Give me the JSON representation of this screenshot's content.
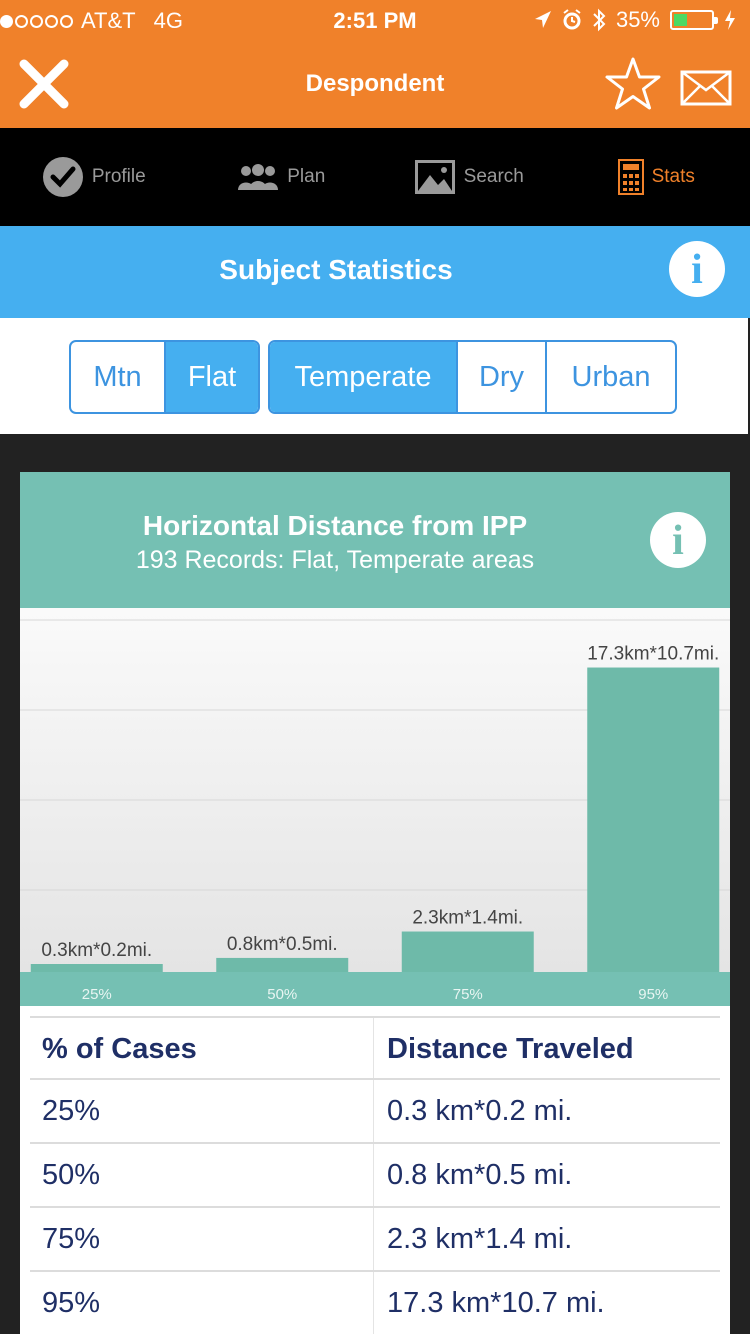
{
  "status_bar": {
    "carrier": "AT&T",
    "network": "4G",
    "time": "2:51 PM",
    "battery": "35%",
    "battery_level": 0.35
  },
  "nav": {
    "title": "Despondent"
  },
  "tabs": [
    {
      "label": "Profile",
      "icon": "check-circle-icon",
      "active": false
    },
    {
      "label": "Plan",
      "icon": "people-icon",
      "active": false
    },
    {
      "label": "Search",
      "icon": "image-icon",
      "active": false
    },
    {
      "label": "Stats",
      "icon": "calculator-icon",
      "active": true
    }
  ],
  "header": {
    "title": "Subject Statistics"
  },
  "terrain_filter": [
    {
      "label": "Mtn",
      "selected": false
    },
    {
      "label": "Flat",
      "selected": true
    }
  ],
  "climate_filter": [
    {
      "label": "Temperate",
      "selected": true
    },
    {
      "label": "Dry",
      "selected": false
    },
    {
      "label": "Urban",
      "selected": false
    }
  ],
  "chart_card": {
    "title": "Horizontal Distance from IPP",
    "subtitle": "193 Records: Flat, Temperate areas"
  },
  "chart_data": {
    "type": "bar",
    "categories": [
      "25%",
      "50%",
      "75%",
      "95%"
    ],
    "values": [
      0.3,
      0.8,
      2.3,
      17.3
    ],
    "data_labels": [
      "0.3km*0.2mi.",
      "0.8km*0.5mi.",
      "2.3km*1.4mi.",
      "17.3km*10.7mi."
    ],
    "ylim": [
      0,
      20
    ],
    "grid": true,
    "colors": {
      "bar": "#6ebaa9",
      "background": "#ececec"
    }
  },
  "table": {
    "headers": [
      "% of Cases",
      "Distance Traveled"
    ],
    "rows": [
      [
        "25%",
        "0.3 km*0.2 mi."
      ],
      [
        "50%",
        "0.8 km*0.5 mi."
      ],
      [
        "75%",
        "2.3 km*1.4 mi."
      ],
      [
        "95%",
        "17.3 km*10.7 mi."
      ]
    ]
  },
  "colors": {
    "nav_orange": "#f0812a",
    "header_blue": "#45aff0",
    "card_teal": "#75c0b3",
    "table_text": "#1f2f66"
  }
}
